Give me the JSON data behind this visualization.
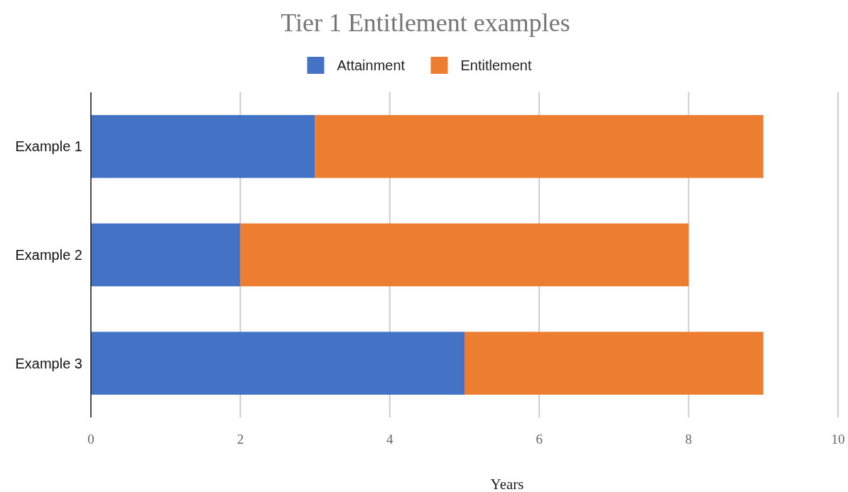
{
  "chart_data": {
    "type": "bar",
    "title": "Tier 1 Entitlement examples",
    "xlabel": "Years",
    "orientation": "horizontal",
    "stacked": true,
    "categories": [
      "Example 1",
      "Example 2",
      "Example 3"
    ],
    "series": [
      {
        "name": "Attainment",
        "color": "#4472c4",
        "values": [
          3,
          2,
          5
        ]
      },
      {
        "name": "Entitlement",
        "color": "#ed7d31",
        "values": [
          6,
          6,
          4
        ]
      }
    ],
    "xlim": [
      0,
      10
    ],
    "xticks": [
      0,
      2,
      4,
      6,
      8,
      10
    ],
    "grid": "x",
    "legend": "top"
  }
}
